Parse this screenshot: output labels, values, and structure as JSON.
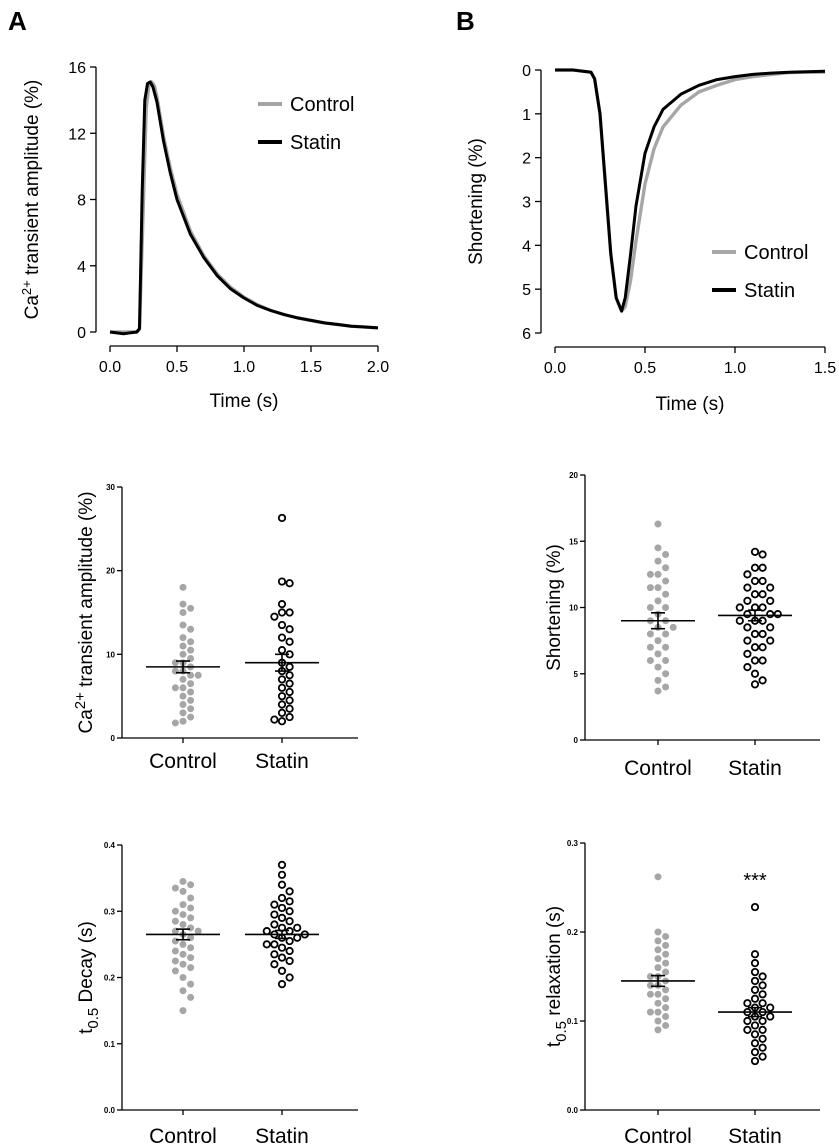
{
  "panel_labels": [
    "A",
    "B"
  ],
  "colors": {
    "control": "#a6a6a6",
    "statin": "#000000"
  },
  "chart_data": [
    {
      "id": "a_trace",
      "type": "line",
      "xlabel": "Time  (s)",
      "ylabel_main": "Ca",
      "ylabel_sup": "2+",
      "ylabel_rest": " transient amplitude (%)",
      "xlim": [
        0,
        2.0
      ],
      "ylim": [
        0,
        16
      ],
      "xticks": [
        "0.0",
        "0.5",
        "1.0",
        "1.5",
        "2.0"
      ],
      "yticks": [
        "0",
        "4",
        "8",
        "12",
        "16"
      ],
      "legend": [
        "Control",
        "Statin"
      ],
      "series": [
        {
          "name": "Control",
          "x": [
            0.0,
            0.1,
            0.2,
            0.22,
            0.25,
            0.27,
            0.29,
            0.31,
            0.33,
            0.35,
            0.4,
            0.45,
            0.5,
            0.6,
            0.7,
            0.8,
            0.9,
            1.0,
            1.1,
            1.2,
            1.3,
            1.4,
            1.5,
            1.6,
            1.7,
            1.8,
            1.9,
            2.0
          ],
          "y": [
            0.0,
            0.0,
            0.0,
            0.2,
            8.0,
            13.5,
            14.9,
            15.1,
            14.9,
            14.2,
            11.8,
            9.9,
            8.3,
            6.1,
            4.6,
            3.5,
            2.7,
            2.1,
            1.65,
            1.3,
            1.05,
            0.85,
            0.7,
            0.55,
            0.45,
            0.35,
            0.3,
            0.25
          ]
        },
        {
          "name": "Statin",
          "x": [
            0.0,
            0.1,
            0.2,
            0.22,
            0.24,
            0.26,
            0.28,
            0.3,
            0.32,
            0.35,
            0.4,
            0.45,
            0.5,
            0.6,
            0.7,
            0.8,
            0.9,
            1.0,
            1.1,
            1.2,
            1.3,
            1.4,
            1.5,
            1.6,
            1.7,
            1.8,
            1.9,
            2.0
          ],
          "y": [
            0.0,
            -0.1,
            0.0,
            0.2,
            8.5,
            14.0,
            15.0,
            15.1,
            14.8,
            13.9,
            11.5,
            9.6,
            8.0,
            5.9,
            4.5,
            3.4,
            2.6,
            2.05,
            1.6,
            1.3,
            1.05,
            0.85,
            0.7,
            0.55,
            0.45,
            0.35,
            0.3,
            0.25
          ]
        }
      ]
    },
    {
      "id": "b_trace",
      "type": "line",
      "xlabel": "Time  (s)",
      "ylabel": "Shortening (%)",
      "xlim": [
        0,
        1.5
      ],
      "ylim": [
        0,
        6
      ],
      "y_inverted": true,
      "xticks": [
        "0.0",
        "0.5",
        "1.0",
        "1.5"
      ],
      "yticks": [
        "0",
        "1",
        "2",
        "3",
        "4",
        "5",
        "6"
      ],
      "legend": [
        "Control",
        "Statin"
      ],
      "series": [
        {
          "name": "Control",
          "x": [
            0.0,
            0.1,
            0.2,
            0.22,
            0.25,
            0.28,
            0.31,
            0.34,
            0.37,
            0.39,
            0.42,
            0.45,
            0.5,
            0.55,
            0.6,
            0.7,
            0.8,
            0.9,
            1.0,
            1.1,
            1.2,
            1.3,
            1.4,
            1.5
          ],
          "y": [
            0.0,
            0.0,
            0.05,
            0.2,
            1.0,
            2.6,
            4.2,
            5.2,
            5.5,
            5.4,
            4.8,
            3.9,
            2.6,
            1.8,
            1.3,
            0.8,
            0.5,
            0.35,
            0.22,
            0.15,
            0.1,
            0.06,
            0.05,
            0.05
          ]
        },
        {
          "name": "Statin",
          "x": [
            0.0,
            0.1,
            0.2,
            0.22,
            0.25,
            0.28,
            0.31,
            0.34,
            0.37,
            0.39,
            0.42,
            0.45,
            0.5,
            0.55,
            0.6,
            0.7,
            0.8,
            0.9,
            1.0,
            1.1,
            1.2,
            1.3,
            1.4,
            1.5
          ],
          "y": [
            0.0,
            0.0,
            0.05,
            0.2,
            1.0,
            2.6,
            4.2,
            5.2,
            5.5,
            5.2,
            4.2,
            3.1,
            1.9,
            1.3,
            0.9,
            0.55,
            0.35,
            0.22,
            0.15,
            0.1,
            0.07,
            0.05,
            0.04,
            0.03
          ]
        }
      ]
    },
    {
      "id": "a_scatter_amp",
      "type": "scatter",
      "categories": [
        "Control",
        "Statin"
      ],
      "ylabel_main": "Ca",
      "ylabel_sup": "2+",
      "ylabel_rest": " transient amplitude (%)",
      "ylim": [
        0,
        30
      ],
      "yticks": [
        "0",
        "10",
        "20",
        "30"
      ],
      "mean": [
        8.5,
        9.0
      ],
      "sem": [
        0.7,
        1.0
      ],
      "series": [
        {
          "name": "Control",
          "values": [
            18.0,
            16.0,
            15.5,
            15.0,
            13.5,
            13.0,
            12.0,
            11.5,
            11.0,
            10.5,
            10.0,
            9.5,
            9.0,
            9.0,
            8.5,
            8.0,
            8.0,
            7.5,
            7.5,
            7.0,
            6.5,
            6.0,
            6.0,
            5.5,
            5.0,
            4.5,
            4.0,
            3.5,
            3.0,
            2.5,
            2.0,
            1.8
          ]
        },
        {
          "name": "Statin",
          "values": [
            26.3,
            18.7,
            18.5,
            16.0,
            15.0,
            15.0,
            14.5,
            13.5,
            13.0,
            12.0,
            11.5,
            10.5,
            10.0,
            9.0,
            8.5,
            8.0,
            7.5,
            7.0,
            6.5,
            6.0,
            5.5,
            5.0,
            4.5,
            4.0,
            3.5,
            3.0,
            2.5,
            2.2,
            2.0
          ]
        }
      ]
    },
    {
      "id": "b_scatter_short",
      "type": "scatter",
      "categories": [
        "Control",
        "Statin"
      ],
      "ylabel": "Shortening (%)",
      "ylim": [
        0,
        20
      ],
      "yticks": [
        "0",
        "5",
        "10",
        "15",
        "20"
      ],
      "mean": [
        9.0,
        9.4
      ],
      "sem": [
        0.6,
        0.4
      ],
      "series": [
        {
          "name": "Control",
          "values": [
            16.3,
            14.5,
            14.0,
            13.5,
            13.0,
            12.5,
            12.5,
            12.0,
            11.5,
            11.5,
            11.0,
            10.5,
            10.0,
            10.0,
            9.5,
            9.0,
            9.0,
            8.5,
            8.5,
            8.0,
            8.0,
            7.5,
            7.0,
            7.0,
            6.5,
            6.0,
            6.0,
            5.5,
            5.0,
            4.5,
            4.0,
            3.7
          ]
        },
        {
          "name": "Statin",
          "values": [
            14.2,
            14.0,
            13.0,
            13.0,
            12.5,
            12.0,
            12.0,
            11.5,
            11.5,
            11.0,
            11.0,
            10.5,
            10.5,
            10.0,
            10.0,
            10.0,
            9.5,
            9.5,
            9.5,
            9.0,
            9.0,
            9.0,
            8.5,
            8.5,
            8.0,
            8.0,
            7.5,
            7.5,
            7.0,
            7.0,
            6.5,
            6.0,
            6.0,
            5.5,
            5.0,
            4.5,
            4.2
          ]
        }
      ]
    },
    {
      "id": "a_scatter_decay",
      "type": "scatter",
      "categories": [
        "Control",
        "Statin"
      ],
      "ylabel_main": "t",
      "ylabel_sub": "0.5",
      "ylabel_rest": " Decay (s)",
      "ylim": [
        0,
        0.4
      ],
      "yticks": [
        "0.0",
        "0.1",
        "0.2",
        "0.3",
        "0.4"
      ],
      "mean": [
        0.265,
        0.265
      ],
      "sem": [
        0.008,
        0.006
      ],
      "series": [
        {
          "name": "Control",
          "values": [
            0.345,
            0.34,
            0.335,
            0.33,
            0.32,
            0.31,
            0.305,
            0.3,
            0.295,
            0.29,
            0.285,
            0.28,
            0.275,
            0.27,
            0.27,
            0.265,
            0.26,
            0.255,
            0.25,
            0.245,
            0.24,
            0.235,
            0.23,
            0.225,
            0.22,
            0.215,
            0.21,
            0.2,
            0.19,
            0.18,
            0.17,
            0.15
          ]
        },
        {
          "name": "Statin",
          "values": [
            0.37,
            0.355,
            0.34,
            0.33,
            0.32,
            0.315,
            0.31,
            0.305,
            0.3,
            0.295,
            0.29,
            0.285,
            0.28,
            0.275,
            0.275,
            0.27,
            0.27,
            0.265,
            0.265,
            0.26,
            0.26,
            0.255,
            0.25,
            0.25,
            0.245,
            0.24,
            0.235,
            0.23,
            0.225,
            0.22,
            0.21,
            0.2,
            0.19
          ]
        }
      ]
    },
    {
      "id": "b_scatter_relax",
      "type": "scatter",
      "categories": [
        "Control",
        "Statin"
      ],
      "ylabel_main": "t",
      "ylabel_sub": "0.5",
      "ylabel_rest": " relaxation (s)",
      "ylim": [
        0,
        0.3
      ],
      "yticks": [
        "0.0",
        "0.1",
        "0.2",
        "0.3"
      ],
      "mean": [
        0.145,
        0.11
      ],
      "sem": [
        0.006,
        0.005
      ],
      "annotation": "***",
      "series": [
        {
          "name": "Control",
          "values": [
            0.262,
            0.2,
            0.195,
            0.19,
            0.185,
            0.18,
            0.175,
            0.17,
            0.165,
            0.16,
            0.155,
            0.15,
            0.15,
            0.145,
            0.14,
            0.14,
            0.135,
            0.13,
            0.13,
            0.125,
            0.12,
            0.115,
            0.11,
            0.11,
            0.105,
            0.1,
            0.095,
            0.09
          ]
        },
        {
          "name": "Statin",
          "values": [
            0.228,
            0.175,
            0.165,
            0.155,
            0.15,
            0.145,
            0.14,
            0.135,
            0.13,
            0.125,
            0.12,
            0.12,
            0.115,
            0.115,
            0.11,
            0.11,
            0.105,
            0.105,
            0.1,
            0.1,
            0.095,
            0.09,
            0.09,
            0.085,
            0.08,
            0.075,
            0.07,
            0.065,
            0.06,
            0.055
          ]
        }
      ]
    }
  ]
}
